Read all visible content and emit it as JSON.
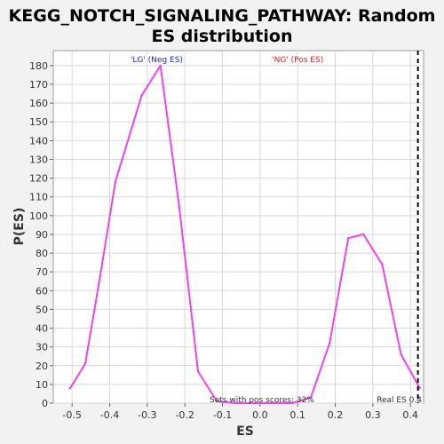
{
  "chart_data": {
    "type": "line",
    "title_line1": "KEGG_NOTCH_SIGNALING_PATHWAY: Random",
    "title_line2": "ES distribution",
    "xlabel": "ES",
    "ylabel": "P(ES)",
    "xlim": [
      -0.55,
      0.435
    ],
    "ylim": [
      0,
      188
    ],
    "x_ticks": [
      -0.5,
      -0.4,
      -0.3,
      -0.2,
      -0.1,
      0.0,
      0.1,
      0.2,
      0.3,
      0.4
    ],
    "x_tick_labels": [
      "-0.5",
      "-0.4",
      "-0.3",
      "-0.2",
      "-0.1",
      "0.0",
      "0.1",
      "0.2",
      "0.3",
      "0.4"
    ],
    "y_ticks": [
      0,
      10,
      20,
      30,
      40,
      50,
      60,
      70,
      80,
      90,
      100,
      110,
      120,
      130,
      140,
      150,
      160,
      170,
      180
    ],
    "grid": true,
    "series": [
      {
        "color": "#ee44ee",
        "x": [
          -0.505,
          -0.465,
          -0.425,
          -0.385,
          -0.315,
          -0.265,
          -0.215,
          -0.165,
          -0.115,
          -0.065,
          -0.015,
          0.035,
          0.085,
          0.135,
          0.185,
          0.235,
          0.275,
          0.325,
          0.375,
          0.425
        ],
        "y": [
          8,
          21,
          68,
          118,
          164,
          180,
          105,
          17,
          1,
          0,
          0,
          0,
          0,
          3,
          32,
          88,
          90,
          74,
          26,
          8
        ]
      }
    ],
    "real_es": 0.42,
    "annotations": {
      "neg_label": "'LG' (Neg ES)",
      "pos_label": "'NG' (Pos ES)",
      "sets_pos": "Sets with pos scores: 32%",
      "real_es_label": "Real ES 0.4"
    },
    "colors": {
      "neg": "#2222dd",
      "pos": "#dd2222",
      "line": "#ee44ee"
    }
  }
}
